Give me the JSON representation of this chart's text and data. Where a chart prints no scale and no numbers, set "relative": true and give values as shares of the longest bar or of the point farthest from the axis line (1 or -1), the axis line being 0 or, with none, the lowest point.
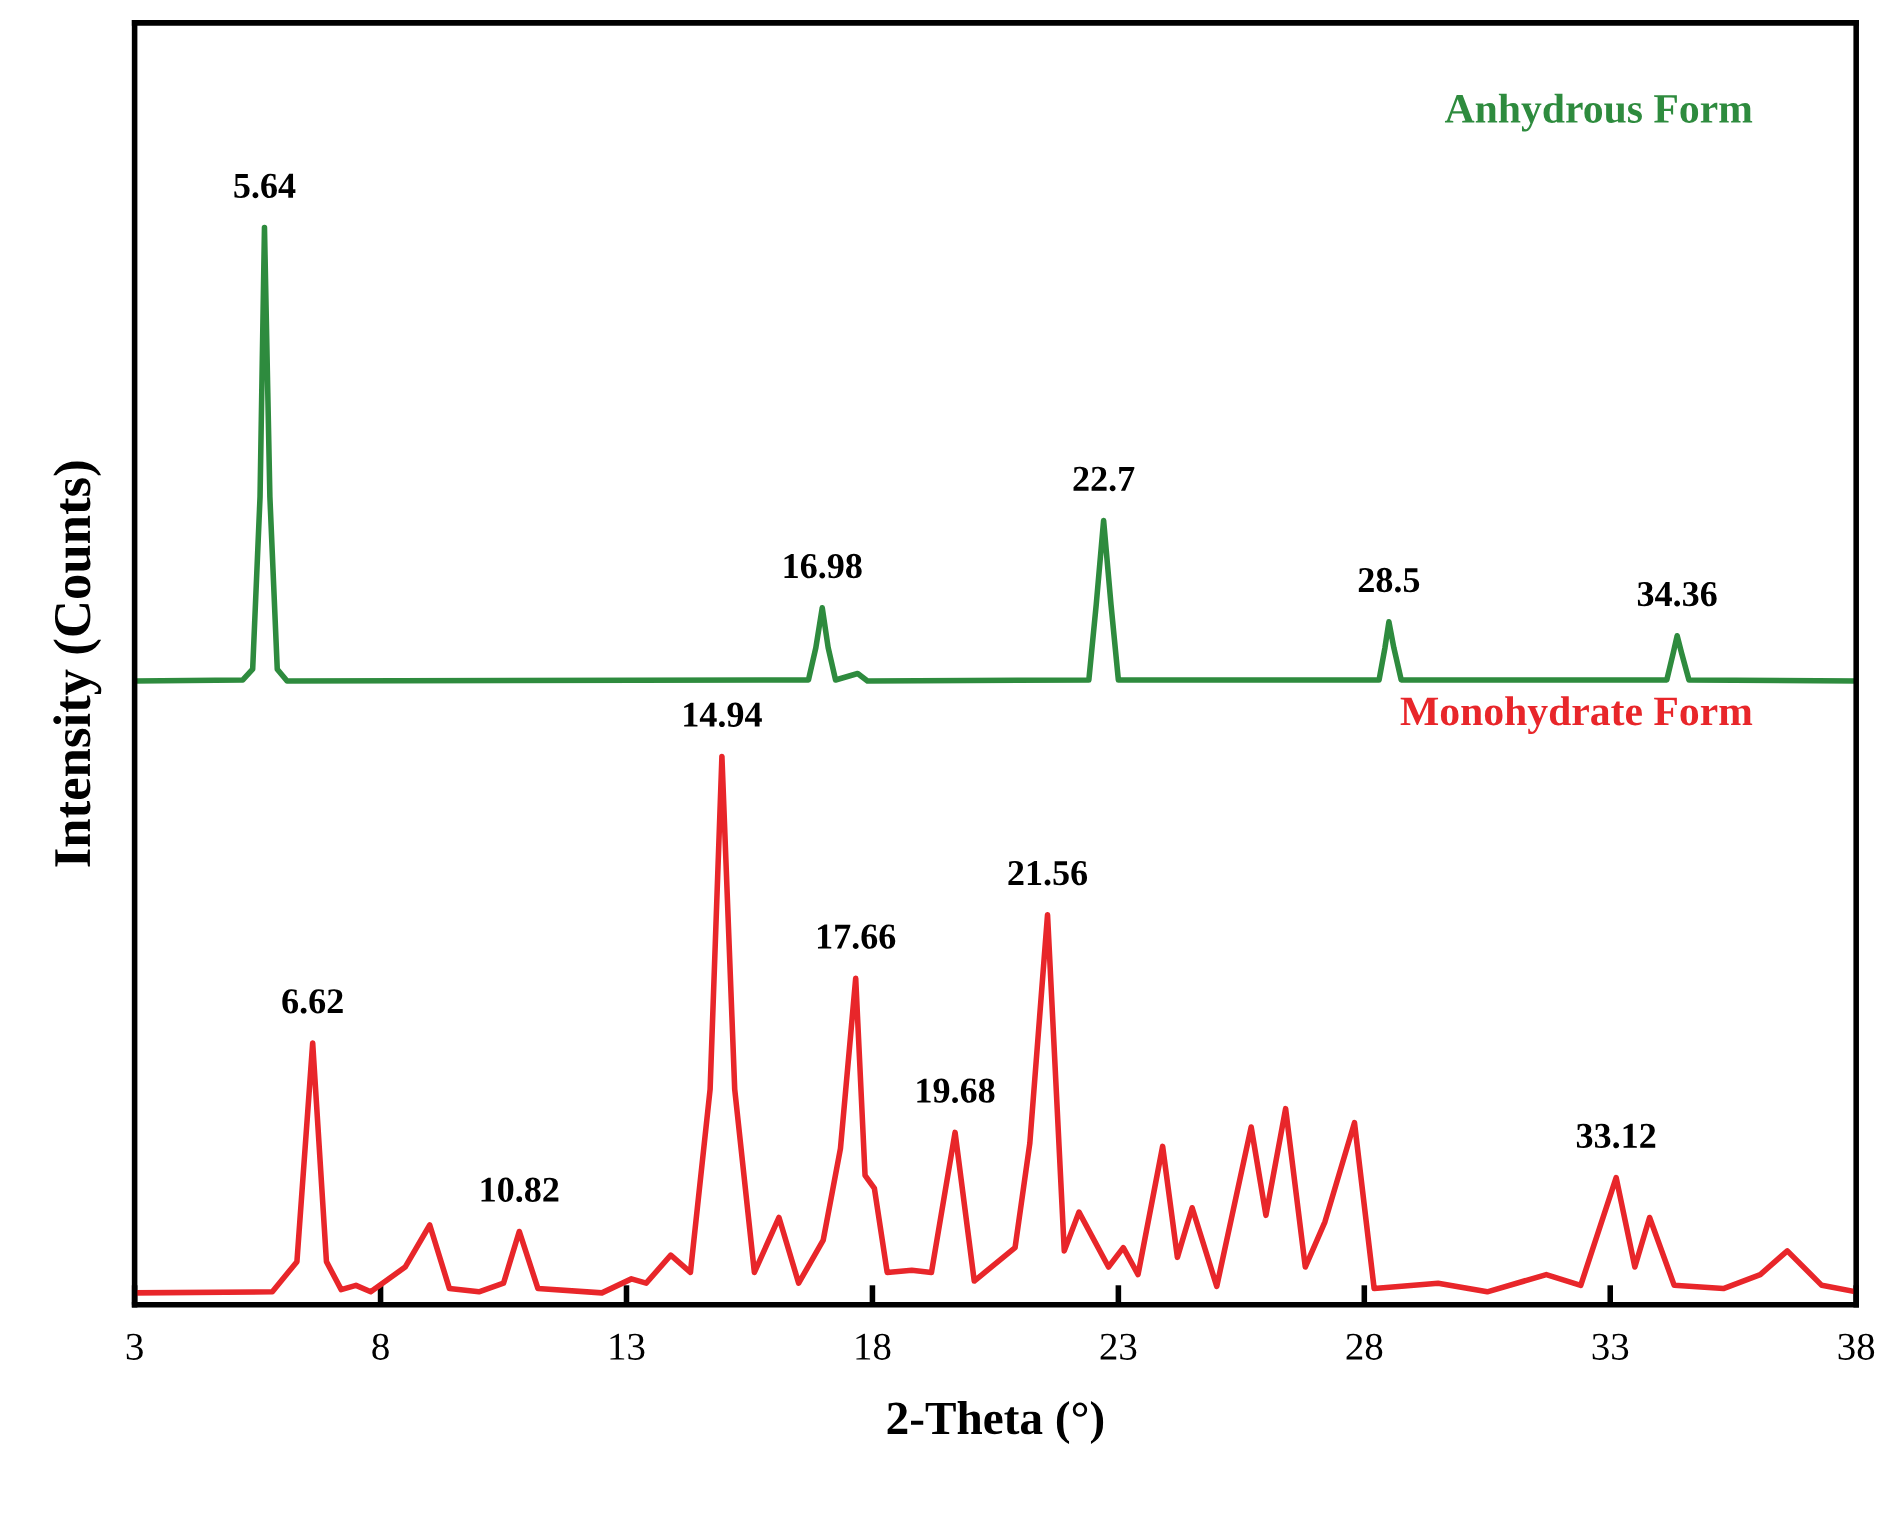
{
  "chart_data": {
    "type": "line",
    "relative": true,
    "xlabel": "2-Theta (°)",
    "ylabel": "Intensity (Counts)",
    "xlim": [
      3,
      38
    ],
    "xticks": [
      3,
      8,
      13,
      18,
      23,
      28,
      33,
      38
    ],
    "legend": false,
    "grid": false,
    "series": [
      {
        "name": "Anhydrous Form",
        "color": "#2e8b3e",
        "x": [
          3,
          5.2,
          5.4,
          5.55,
          5.64,
          5.75,
          5.9,
          6.1,
          16.7,
          16.85,
          16.98,
          17.1,
          17.25,
          17.7,
          17.9,
          22.4,
          22.55,
          22.7,
          22.85,
          23.0,
          28.3,
          28.42,
          28.5,
          28.6,
          28.75,
          34.15,
          34.28,
          34.36,
          34.45,
          34.6,
          38
        ],
        "values": [
          0.579,
          0.58,
          0.59,
          0.75,
          1.0,
          0.75,
          0.59,
          0.579,
          0.58,
          0.61,
          0.647,
          0.61,
          0.58,
          0.586,
          0.579,
          0.58,
          0.65,
          0.728,
          0.65,
          0.58,
          0.58,
          0.61,
          0.634,
          0.61,
          0.58,
          0.58,
          0.605,
          0.621,
          0.605,
          0.58,
          0.579
        ]
      },
      {
        "name": "Monohydrate Form",
        "color": "#e8262a",
        "x": [
          3,
          5.8,
          6.3,
          6.62,
          6.9,
          7.2,
          7.5,
          7.8,
          8.5,
          9.0,
          9.4,
          10.0,
          10.5,
          10.82,
          11.2,
          12.5,
          13.1,
          13.4,
          13.9,
          14.3,
          14.7,
          14.94,
          15.2,
          15.6,
          16.1,
          16.5,
          17.0,
          17.35,
          17.66,
          17.85,
          18.04,
          18.3,
          18.8,
          19.2,
          19.68,
          20.07,
          20.9,
          21.2,
          21.56,
          21.9,
          22.2,
          22.8,
          23.1,
          23.4,
          23.9,
          24.2,
          24.5,
          25.0,
          25.7,
          26.0,
          26.4,
          26.8,
          27.2,
          27.8,
          28.2,
          29.5,
          30.5,
          31.7,
          32.4,
          33.12,
          33.5,
          33.8,
          34.3,
          35.3,
          36.05,
          36.6,
          37.3,
          38
        ],
        "values": [
          0.011,
          0.012,
          0.04,
          0.243,
          0.04,
          0.014,
          0.018,
          0.012,
          0.035,
          0.074,
          0.015,
          0.012,
          0.02,
          0.068,
          0.015,
          0.011,
          0.024,
          0.02,
          0.046,
          0.03,
          0.2,
          0.509,
          0.2,
          0.03,
          0.081,
          0.02,
          0.06,
          0.145,
          0.303,
          0.12,
          0.108,
          0.03,
          0.032,
          0.03,
          0.16,
          0.022,
          0.053,
          0.15,
          0.362,
          0.05,
          0.086,
          0.035,
          0.053,
          0.028,
          0.147,
          0.044,
          0.09,
          0.017,
          0.165,
          0.083,
          0.182,
          0.035,
          0.077,
          0.169,
          0.015,
          0.02,
          0.012,
          0.028,
          0.018,
          0.118,
          0.035,
          0.081,
          0.018,
          0.015,
          0.028,
          0.05,
          0.018,
          0.012
        ]
      }
    ],
    "annotations": [
      {
        "text": "5.64",
        "x": 5.64,
        "y": 1.0
      },
      {
        "text": "16.98",
        "x": 16.98,
        "y": 0.647
      },
      {
        "text": "22.7",
        "x": 22.7,
        "y": 0.728
      },
      {
        "text": "28.5",
        "x": 28.5,
        "y": 0.634
      },
      {
        "text": "34.36",
        "x": 34.36,
        "y": 0.621
      },
      {
        "text": "6.62",
        "x": 6.62,
        "y": 0.243
      },
      {
        "text": "10.82",
        "x": 10.82,
        "y": 0.068
      },
      {
        "text": "14.94",
        "x": 14.94,
        "y": 0.509
      },
      {
        "text": "17.66",
        "x": 17.66,
        "y": 0.303
      },
      {
        "text": "19.68",
        "x": 19.68,
        "y": 0.16
      },
      {
        "text": "21.56",
        "x": 21.56,
        "y": 0.362
      },
      {
        "text": "33.12",
        "x": 33.12,
        "y": 0.118
      }
    ]
  }
}
